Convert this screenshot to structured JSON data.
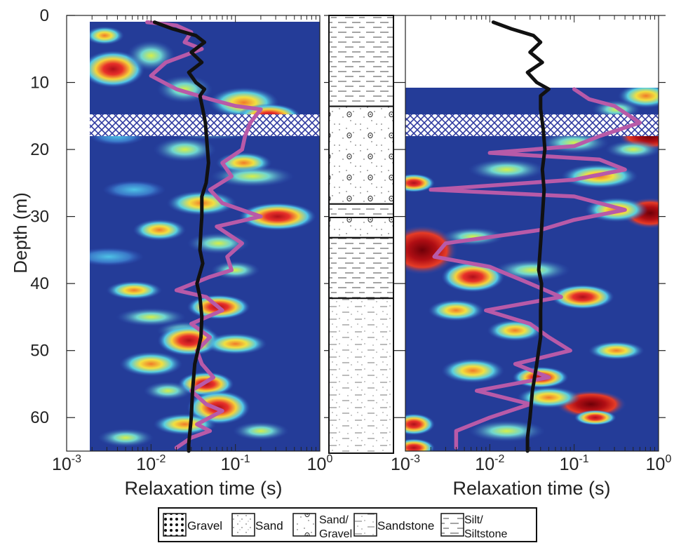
{
  "chart_data": [
    {
      "type": "heatmap",
      "xlabel": "Relaxation time (s)",
      "ylabel": "Depth (m)",
      "x_scale": "log",
      "xlim": [
        0.001,
        1
      ],
      "ylim": [
        65,
        0
      ],
      "x_ticks": [
        {
          "value": 0.001,
          "base": "10",
          "exp": "-3"
        },
        {
          "value": 0.01,
          "base": "10",
          "exp": "-2"
        },
        {
          "value": 0.1,
          "base": "10",
          "exp": "-1"
        },
        {
          "value": 1,
          "base": "10",
          "exp": "0"
        }
      ],
      "y_ticks": [
        "0",
        "10",
        "20",
        "30",
        "40",
        "50",
        "60"
      ],
      "data_depth_range": [
        1,
        65
      ],
      "hatched_depth_range": [
        15,
        18
      ],
      "series": [
        {
          "color": "#111111",
          "points": [
            [
              0.011,
              1
            ],
            [
              0.018,
              2
            ],
            [
              0.034,
              3
            ],
            [
              0.043,
              4
            ],
            [
              0.03,
              5.5
            ],
            [
              0.04,
              7
            ],
            [
              0.028,
              8.5
            ],
            [
              0.034,
              10
            ],
            [
              0.043,
              11
            ],
            [
              0.038,
              12
            ],
            [
              0.041,
              14
            ],
            [
              0.044,
              16
            ],
            [
              0.046,
              19
            ],
            [
              0.048,
              22
            ],
            [
              0.045,
              25
            ],
            [
              0.04,
              27
            ],
            [
              0.04,
              30
            ],
            [
              0.039,
              32
            ],
            [
              0.038,
              35
            ],
            [
              0.041,
              37
            ],
            [
              0.035,
              40
            ],
            [
              0.038,
              42
            ],
            [
              0.04,
              45
            ],
            [
              0.039,
              48
            ],
            [
              0.033,
              52
            ],
            [
              0.031,
              56
            ],
            [
              0.03,
              60
            ],
            [
              0.028,
              64
            ],
            [
              0.028,
              65
            ]
          ]
        },
        {
          "color": "#b85aa8",
          "points": [
            [
              0.009,
              1
            ],
            [
              0.02,
              1.5
            ],
            [
              0.03,
              2.5
            ],
            [
              0.025,
              4
            ],
            [
              0.04,
              5
            ],
            [
              0.015,
              7
            ],
            [
              0.01,
              9
            ],
            [
              0.02,
              11
            ],
            [
              0.05,
              12.5
            ],
            [
              0.1,
              13.5
            ],
            [
              0.2,
              14
            ],
            [
              0.15,
              16
            ],
            [
              0.13,
              18
            ],
            [
              0.12,
              20
            ],
            [
              0.07,
              22
            ],
            [
              0.09,
              24
            ],
            [
              0.05,
              26
            ],
            [
              0.07,
              28
            ],
            [
              0.2,
              30
            ],
            [
              0.06,
              31.5
            ],
            [
              0.12,
              34
            ],
            [
              0.08,
              36
            ],
            [
              0.09,
              38
            ],
            [
              0.05,
              39
            ],
            [
              0.02,
              41
            ],
            [
              0.045,
              42
            ],
            [
              0.07,
              44
            ],
            [
              0.03,
              46
            ],
            [
              0.05,
              48
            ],
            [
              0.035,
              50
            ],
            [
              0.04,
              52
            ],
            [
              0.055,
              54
            ],
            [
              0.03,
              56
            ],
            [
              0.045,
              58
            ],
            [
              0.07,
              59
            ],
            [
              0.035,
              61
            ],
            [
              0.05,
              62
            ],
            [
              0.03,
              63
            ],
            [
              0.02,
              64.5
            ]
          ]
        }
      ]
    },
    {
      "type": "heatmap",
      "xlabel": "Relaxation time (s)",
      "x_scale": "log",
      "xlim": [
        0.001,
        1
      ],
      "ylim": [
        65,
        0
      ],
      "x_ticks": [
        {
          "value": 0.001,
          "base": "10",
          "exp": "-3"
        },
        {
          "value": 0.01,
          "base": "10",
          "exp": "-2"
        },
        {
          "value": 0.1,
          "base": "10",
          "exp": "-1"
        },
        {
          "value": 1,
          "base": "10",
          "exp": "0"
        }
      ],
      "data_depth_range": [
        11,
        65
      ],
      "hatched_depth_range": [
        15,
        18
      ],
      "series": [
        {
          "color": "#111111",
          "points": [
            [
              0.011,
              1
            ],
            [
              0.018,
              2
            ],
            [
              0.033,
              3
            ],
            [
              0.04,
              4
            ],
            [
              0.03,
              5.5
            ],
            [
              0.042,
              7
            ],
            [
              0.028,
              8.5
            ],
            [
              0.036,
              10
            ],
            [
              0.05,
              11
            ],
            [
              0.04,
              12
            ],
            [
              0.04,
              14
            ],
            [
              0.043,
              17
            ],
            [
              0.045,
              20
            ],
            [
              0.042,
              23
            ],
            [
              0.044,
              26
            ],
            [
              0.042,
              30
            ],
            [
              0.04,
              34
            ],
            [
              0.038,
              38
            ],
            [
              0.041,
              40
            ],
            [
              0.04,
              44
            ],
            [
              0.04,
              48
            ],
            [
              0.036,
              52
            ],
            [
              0.032,
              56
            ],
            [
              0.03,
              60
            ],
            [
              0.028,
              63
            ],
            [
              0.028,
              65
            ]
          ]
        },
        {
          "color": "#b85aa8",
          "points": [
            [
              0.1,
              11
            ],
            [
              0.15,
              12.5
            ],
            [
              0.3,
              13.5
            ],
            [
              0.6,
              16
            ],
            [
              0.2,
              18
            ],
            [
              0.1,
              19.5
            ],
            [
              0.01,
              20.5
            ],
            [
              0.2,
              21.5
            ],
            [
              0.4,
              23
            ],
            [
              0.1,
              24.5
            ],
            [
              0.002,
              26
            ],
            [
              0.1,
              27
            ],
            [
              0.4,
              29
            ],
            [
              0.1,
              30.5
            ],
            [
              0.04,
              32
            ],
            [
              0.003,
              34
            ],
            [
              0.0022,
              36
            ],
            [
              0.01,
              37.5
            ],
            [
              0.03,
              40
            ],
            [
              0.07,
              42
            ],
            [
              0.009,
              44
            ],
            [
              0.03,
              46
            ],
            [
              0.05,
              48
            ],
            [
              0.09,
              50
            ],
            [
              0.02,
              52
            ],
            [
              0.05,
              54
            ],
            [
              0.007,
              56
            ],
            [
              0.03,
              58
            ],
            [
              0.01,
              60
            ],
            [
              0.004,
              62
            ],
            [
              0.004,
              64.5
            ]
          ]
        }
      ]
    }
  ],
  "legend": [
    {
      "label": "Gravel",
      "pattern": "gravel"
    },
    {
      "label": "Sand",
      "pattern": "sand"
    },
    {
      "label": "Sand/",
      "label2": "Gravel",
      "pattern": "sandgravel"
    },
    {
      "label": "Sandstone",
      "pattern": "sandstone"
    },
    {
      "label": "Silt/",
      "label2": "Siltstone",
      "pattern": "silt"
    }
  ],
  "lithology": [
    {
      "top": 0,
      "bottom": 13.5,
      "pattern": "silt"
    },
    {
      "top": 13.5,
      "bottom": 28,
      "pattern": "sandgravel"
    },
    {
      "top": 28,
      "bottom": 30,
      "pattern": "silt"
    },
    {
      "top": 30,
      "bottom": 33,
      "pattern": "sandgravel"
    },
    {
      "top": 33,
      "bottom": 42,
      "pattern": "silt"
    },
    {
      "top": 42,
      "bottom": 65,
      "pattern": "sandstone"
    }
  ],
  "colors": {
    "low": "#1c2f8e",
    "high": "#8b0000"
  }
}
